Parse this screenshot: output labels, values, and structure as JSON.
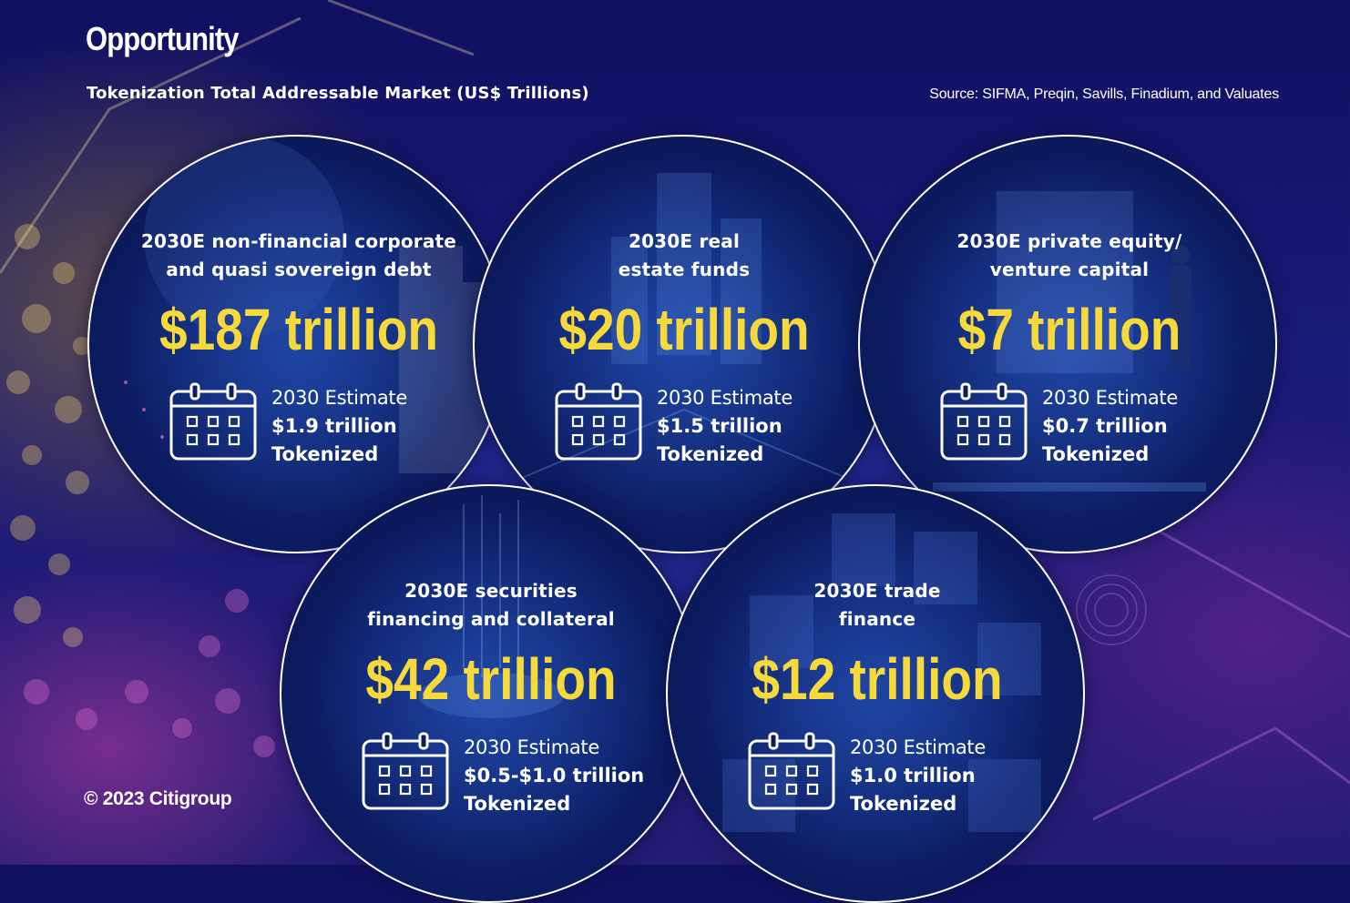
{
  "title": "Opportunity",
  "subtitle": "Tokenization Total Addressable Market (US$ Trillions)",
  "source": "Source: SIFMA, Preqin, Savills, Finadium, and Valuates",
  "copyright": "© 2023 Citigroup",
  "colors": {
    "background": "#1a1a78",
    "circle_fill": "#0c1c62",
    "circle_border": "#ffffff",
    "amount_accent": "#f6d93a",
    "text": "#ffffff"
  },
  "icons": {
    "estimate": "calendar-icon"
  },
  "markets": [
    {
      "heading_line1": "2030E non-financial corporate",
      "heading_line2": "and quasi sovereign debt",
      "amount": "$187 trillion",
      "estimate_label": "2030 Estimate",
      "estimate_value": "$1.9 trillion",
      "estimate_tag": "Tokenized"
    },
    {
      "heading_line1": "2030E real",
      "heading_line2": "estate funds",
      "amount": "$20 trillion",
      "estimate_label": "2030 Estimate",
      "estimate_value": "$1.5 trillion",
      "estimate_tag": "Tokenized"
    },
    {
      "heading_line1": "2030E private equity/",
      "heading_line2": "venture capital",
      "amount": "$7 trillion",
      "estimate_label": "2030 Estimate",
      "estimate_value": "$0.7 trillion",
      "estimate_tag": "Tokenized"
    },
    {
      "heading_line1": "2030E securities",
      "heading_line2": "financing and collateral",
      "amount": "$42 trillion",
      "estimate_label": "2030 Estimate",
      "estimate_value": "$0.5-$1.0 trillion",
      "estimate_tag": "Tokenized"
    },
    {
      "heading_line1": "2030E trade",
      "heading_line2": "finance",
      "amount": "$12 trillion",
      "estimate_label": "2030 Estimate",
      "estimate_value": "$1.0 trillion",
      "estimate_tag": "Tokenized"
    }
  ]
}
